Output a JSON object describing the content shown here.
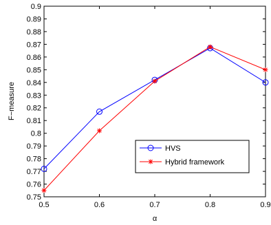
{
  "chart_data": {
    "type": "line",
    "title": "",
    "xlabel": "α",
    "ylabel": "F−measure",
    "x": [
      0.5,
      0.6,
      0.7,
      0.8,
      0.9
    ],
    "xlim": [
      0.5,
      0.9
    ],
    "ylim": [
      0.75,
      0.9
    ],
    "xticks": [
      "0.5",
      "0.6",
      "0.7",
      "0.8",
      "0.9"
    ],
    "yticks": [
      "0.75",
      "0.76",
      "0.77",
      "0.78",
      "0.79",
      "0.8",
      "0.81",
      "0.82",
      "0.83",
      "0.84",
      "0.85",
      "0.86",
      "0.87",
      "0.88",
      "0.89",
      "0.9"
    ],
    "grid": false,
    "legend_position": "lower-right",
    "series": [
      {
        "name": "HVS",
        "values": [
          0.772,
          0.817,
          0.842,
          0.867,
          0.84
        ],
        "color": "#0000ff",
        "marker": "circle"
      },
      {
        "name": "Hybrid framework",
        "values": [
          0.755,
          0.802,
          0.841,
          0.868,
          0.85
        ],
        "color": "#ff0000",
        "marker": "asterisk"
      }
    ]
  }
}
